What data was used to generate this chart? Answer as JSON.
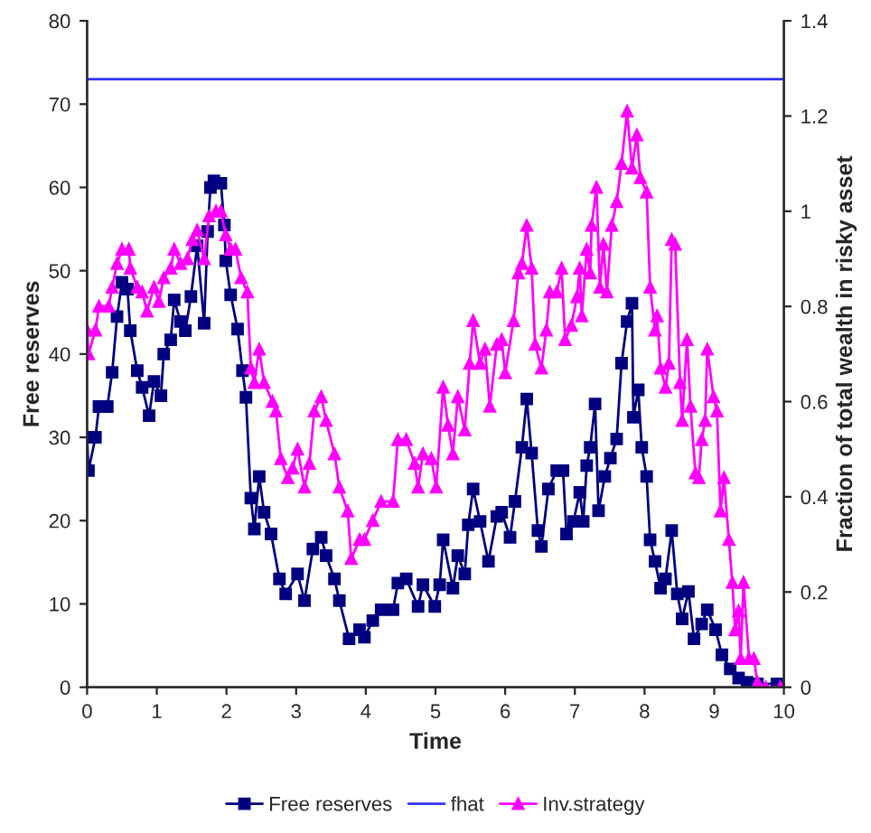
{
  "chart_data": {
    "type": "line",
    "xlabel": "Time",
    "ylabel": "Free reserves",
    "y2label": "Fraction of total wealth in risky asset",
    "xlim": [
      0,
      10
    ],
    "xticks": [
      0,
      1,
      2,
      3,
      4,
      5,
      6,
      7,
      8,
      9,
      10
    ],
    "ylim": [
      0,
      80
    ],
    "yticks": [
      0,
      10,
      20,
      30,
      40,
      50,
      60,
      70,
      80
    ],
    "y2lim": [
      0,
      1.4
    ],
    "y2ticks": [
      0,
      0.2,
      0.4,
      0.6,
      0.8,
      1,
      1.2,
      1.4
    ],
    "grid": false,
    "legend": "bottom",
    "series": [
      {
        "name": "Free reserves",
        "color": "#000080",
        "marker": "square",
        "x": [
          0,
          0.02,
          0.12,
          0.17,
          0.29,
          0.36,
          0.43,
          0.5,
          0.58,
          0.62,
          0.72,
          0.79,
          0.89,
          0.96,
          1.06,
          1.1,
          1.2,
          1.25,
          1.34,
          1.41,
          1.49,
          1.58,
          1.68,
          1.73,
          1.77,
          1.82,
          1.92,
          1.97,
          1.99,
          2.06,
          2.16,
          2.23,
          2.28,
          2.35,
          2.4,
          2.47,
          2.54,
          2.64,
          2.76,
          2.85,
          3.02,
          3.12,
          3.24,
          3.36,
          3.43,
          3.55,
          3.62,
          3.76,
          3.91,
          3.98,
          4.1,
          4.22,
          4.39,
          4.46,
          4.58,
          4.75,
          4.82,
          4.99,
          5.06,
          5.11,
          5.25,
          5.32,
          5.42,
          5.47,
          5.54,
          5.64,
          5.76,
          5.88,
          5.95,
          6.07,
          6.14,
          6.24,
          6.31,
          6.38,
          6.47,
          6.52,
          6.62,
          6.74,
          6.83,
          6.88,
          6.98,
          7.07,
          7.12,
          7.17,
          7.22,
          7.29,
          7.34,
          7.43,
          7.51,
          7.6,
          7.67,
          7.75,
          7.82,
          7.84,
          7.91,
          7.96,
          8.03,
          8.08,
          8.15,
          8.23,
          8.3,
          8.39,
          8.47,
          8.54,
          8.63,
          8.71,
          8.82,
          8.9,
          9.02,
          9.11,
          9.23,
          9.35,
          9.47,
          9.62,
          9.9
        ],
        "values": [
          30,
          26,
          30,
          33.7,
          33.7,
          37.8,
          44.5,
          48.6,
          47.8,
          42.8,
          38,
          36,
          32.6,
          36.7,
          35,
          40,
          41.7,
          46.5,
          43.9,
          42.8,
          46.9,
          53,
          43.7,
          54.7,
          60,
          60.8,
          60.5,
          55.5,
          51.2,
          47.1,
          43,
          38,
          34.8,
          22.7,
          19,
          25.3,
          21,
          18.4,
          13,
          11.2,
          13.6,
          10.4,
          16.6,
          18,
          15.8,
          13,
          10.4,
          5.8,
          6.9,
          6,
          8,
          9.3,
          9.3,
          12.5,
          13,
          9.7,
          12.3,
          9.7,
          12.3,
          17.7,
          11.9,
          15.8,
          13.6,
          19.5,
          23.8,
          19.9,
          15.1,
          20.5,
          21,
          18,
          22.3,
          28.8,
          34.6,
          28.1,
          18.8,
          16.9,
          23.8,
          26,
          26,
          18.4,
          19.9,
          23.4,
          19.9,
          26.6,
          28.8,
          34,
          21.2,
          25.3,
          27.5,
          29.8,
          38.9,
          43.9,
          46.1,
          32.4,
          35.7,
          28.8,
          25.3,
          17.7,
          15.1,
          11.9,
          13,
          18.8,
          11.2,
          8.2,
          11.5,
          5.8,
          7.6,
          9.3,
          6.9,
          3.9,
          2.2,
          1.1,
          0.6,
          0.4,
          0.4
        ]
      },
      {
        "name": "fhat",
        "color": "#3333ff",
        "marker": "none",
        "x": [
          0,
          10
        ],
        "values": [
          73,
          73
        ]
      },
      {
        "name": "Inv.strategy",
        "color": "#ff00ff",
        "marker": "triangle",
        "axis": "y2",
        "x": [
          0,
          0.02,
          0.12,
          0.17,
          0.31,
          0.36,
          0.43,
          0.5,
          0.6,
          0.62,
          0.72,
          0.79,
          0.86,
          0.96,
          1.03,
          1.1,
          1.2,
          1.25,
          1.34,
          1.44,
          1.51,
          1.58,
          1.68,
          1.75,
          1.85,
          1.92,
          1.99,
          2.06,
          2.13,
          2.21,
          2.3,
          2.35,
          2.4,
          2.47,
          2.54,
          2.66,
          2.71,
          2.78,
          2.88,
          2.95,
          3.02,
          3.12,
          3.19,
          3.26,
          3.36,
          3.43,
          3.55,
          3.62,
          3.74,
          3.79,
          3.91,
          3.98,
          4.1,
          4.22,
          4.39,
          4.46,
          4.58,
          4.7,
          4.75,
          4.82,
          4.94,
          5.01,
          5.11,
          5.18,
          5.25,
          5.32,
          5.42,
          5.49,
          5.54,
          5.64,
          5.71,
          5.78,
          5.88,
          5.95,
          6.0,
          6.12,
          6.19,
          6.24,
          6.31,
          6.38,
          6.43,
          6.52,
          6.59,
          6.64,
          6.74,
          6.81,
          6.86,
          6.95,
          7.03,
          7.07,
          7.1,
          7.17,
          7.22,
          7.24,
          7.31,
          7.36,
          7.41,
          7.46,
          7.53,
          7.6,
          7.67,
          7.75,
          7.82,
          7.89,
          7.94,
          8.03,
          8.08,
          8.15,
          8.18,
          8.23,
          8.3,
          8.35,
          8.39,
          8.44,
          8.51,
          8.54,
          8.61,
          8.66,
          8.73,
          8.78,
          8.82,
          8.87,
          8.9,
          8.99,
          9.04,
          9.09,
          9.14,
          9.21,
          9.26,
          9.3,
          9.35,
          9.38,
          9.42,
          9.5,
          9.57,
          9.62,
          9.74,
          9.95
        ],
        "values": [
          0.75,
          0.7,
          0.75,
          0.8,
          0.8,
          0.84,
          0.89,
          0.92,
          0.92,
          0.88,
          0.84,
          0.83,
          0.79,
          0.84,
          0.81,
          0.86,
          0.88,
          0.92,
          0.89,
          0.9,
          0.94,
          0.96,
          0.9,
          0.99,
          1.0,
          1.0,
          0.95,
          0.92,
          0.92,
          0.86,
          0.83,
          0.67,
          0.64,
          0.71,
          0.64,
          0.6,
          0.58,
          0.48,
          0.44,
          0.46,
          0.5,
          0.42,
          0.47,
          0.58,
          0.61,
          0.56,
          0.49,
          0.42,
          0.37,
          0.27,
          0.31,
          0.31,
          0.35,
          0.39,
          0.39,
          0.52,
          0.52,
          0.47,
          0.42,
          0.49,
          0.48,
          0.42,
          0.63,
          0.55,
          0.49,
          0.61,
          0.54,
          0.68,
          0.77,
          0.68,
          0.71,
          0.59,
          0.72,
          0.73,
          0.66,
          0.77,
          0.87,
          0.89,
          0.97,
          0.88,
          0.72,
          0.67,
          0.75,
          0.83,
          0.83,
          0.88,
          0.73,
          0.76,
          0.82,
          0.88,
          0.78,
          0.92,
          0.87,
          0.97,
          1.05,
          0.84,
          0.93,
          0.83,
          0.97,
          1.02,
          1.1,
          1.21,
          1.09,
          1.16,
          1.07,
          1.04,
          0.84,
          0.75,
          0.78,
          0.67,
          0.63,
          0.68,
          0.94,
          0.93,
          0.64,
          0.56,
          0.73,
          0.59,
          0.45,
          0.44,
          0.52,
          0.56,
          0.71,
          0.61,
          0.58,
          0.37,
          0.44,
          0.31,
          0.22,
          0.12,
          0.16,
          0.06,
          0.22,
          0.06,
          0.06,
          0.01,
          0,
          0
        ]
      }
    ]
  }
}
